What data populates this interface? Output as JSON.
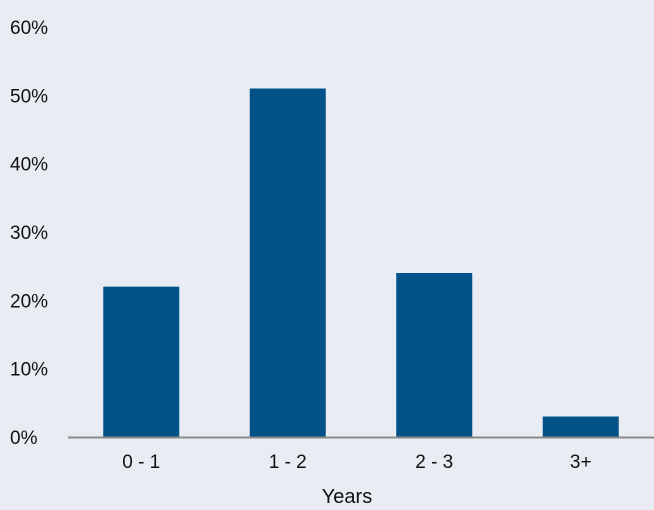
{
  "chart_data": {
    "type": "bar",
    "categories": [
      "0 - 1",
      "1 - 2",
      "2 - 3",
      "3+"
    ],
    "values": [
      22,
      51,
      24,
      3
    ],
    "title": "",
    "xlabel": "Years",
    "ylabel": "",
    "ylim": [
      0,
      60
    ],
    "y_ticks": [
      0,
      10,
      20,
      30,
      40,
      50,
      60
    ],
    "y_tick_format": "percent",
    "grid": false,
    "legend": "none",
    "colors": {
      "background": "#e9edf3",
      "bar": "#005288",
      "axis": "#8a8a8a",
      "text": "#111111"
    }
  }
}
